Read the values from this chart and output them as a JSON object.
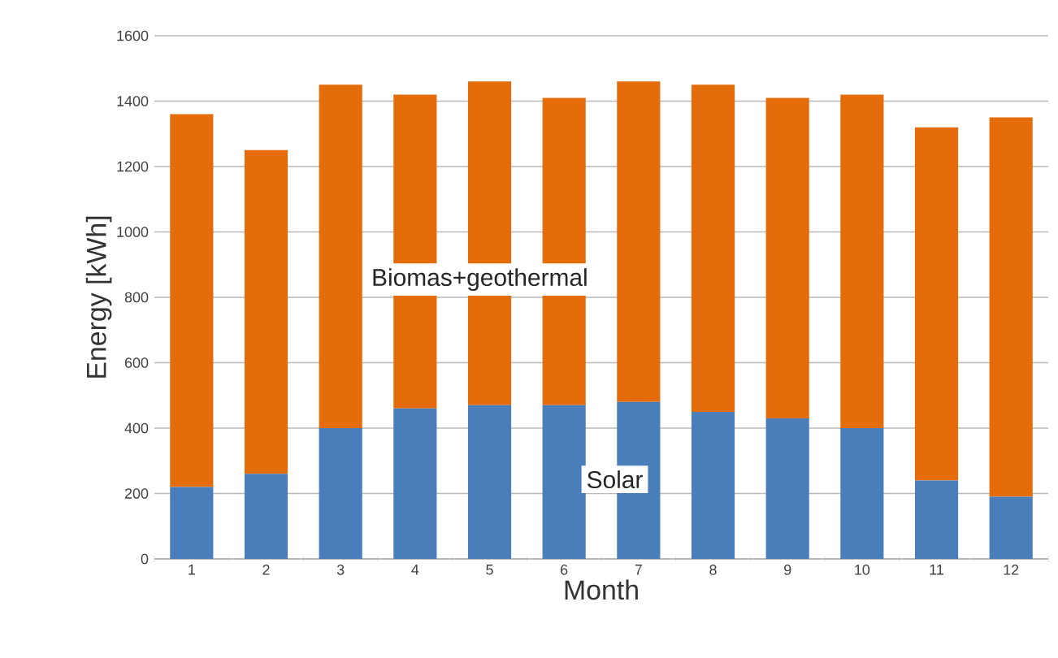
{
  "chart_data": {
    "type": "bar",
    "stacked": true,
    "xlabel": "Month",
    "ylabel": "Energy [kWh]",
    "categories": [
      "1",
      "2",
      "3",
      "4",
      "5",
      "6",
      "7",
      "8",
      "9",
      "10",
      "11",
      "12"
    ],
    "series": [
      {
        "name": "Solar",
        "color": "#4a7ebb",
        "values": [
          220,
          260,
          400,
          460,
          470,
          470,
          480,
          450,
          430,
          400,
          240,
          190
        ]
      },
      {
        "name": "Biomas+geothermal",
        "color": "#e46c0a",
        "values": [
          1140,
          990,
          1050,
          960,
          990,
          940,
          980,
          1000,
          980,
          1020,
          1080,
          1160
        ]
      }
    ],
    "ylim": [
      0,
      1600
    ],
    "yticks": [
      0,
      200,
      400,
      600,
      800,
      1000,
      1200,
      1400,
      1600
    ],
    "grid": "y",
    "legend": false
  }
}
